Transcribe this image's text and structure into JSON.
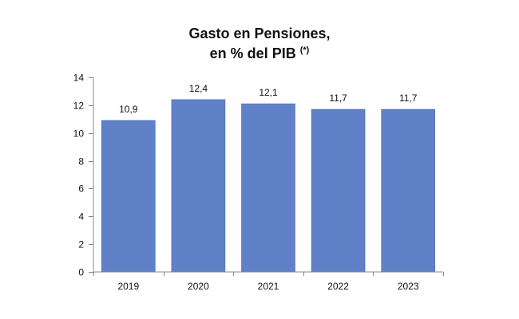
{
  "chart_data": {
    "type": "bar",
    "title": "Gasto en Pensiones,",
    "subtitle": "en % del PIB",
    "subtitle_note": "(*)",
    "xlabel": "",
    "ylabel": "",
    "categories": [
      "2019",
      "2020",
      "2021",
      "2022",
      "2023"
    ],
    "values": [
      10.9,
      12.4,
      12.1,
      11.7,
      11.7
    ],
    "data_labels": [
      "10,9",
      "12,4",
      "12,1",
      "11,7",
      "11,7"
    ],
    "ylim": [
      0,
      14
    ],
    "yticks": [
      0,
      2,
      4,
      6,
      8,
      10,
      12,
      14
    ],
    "grid": false,
    "legend": "none",
    "bar_color": "#6080C8",
    "bar_edge_color": "#4E6BB0",
    "axis_color": "#888888"
  }
}
